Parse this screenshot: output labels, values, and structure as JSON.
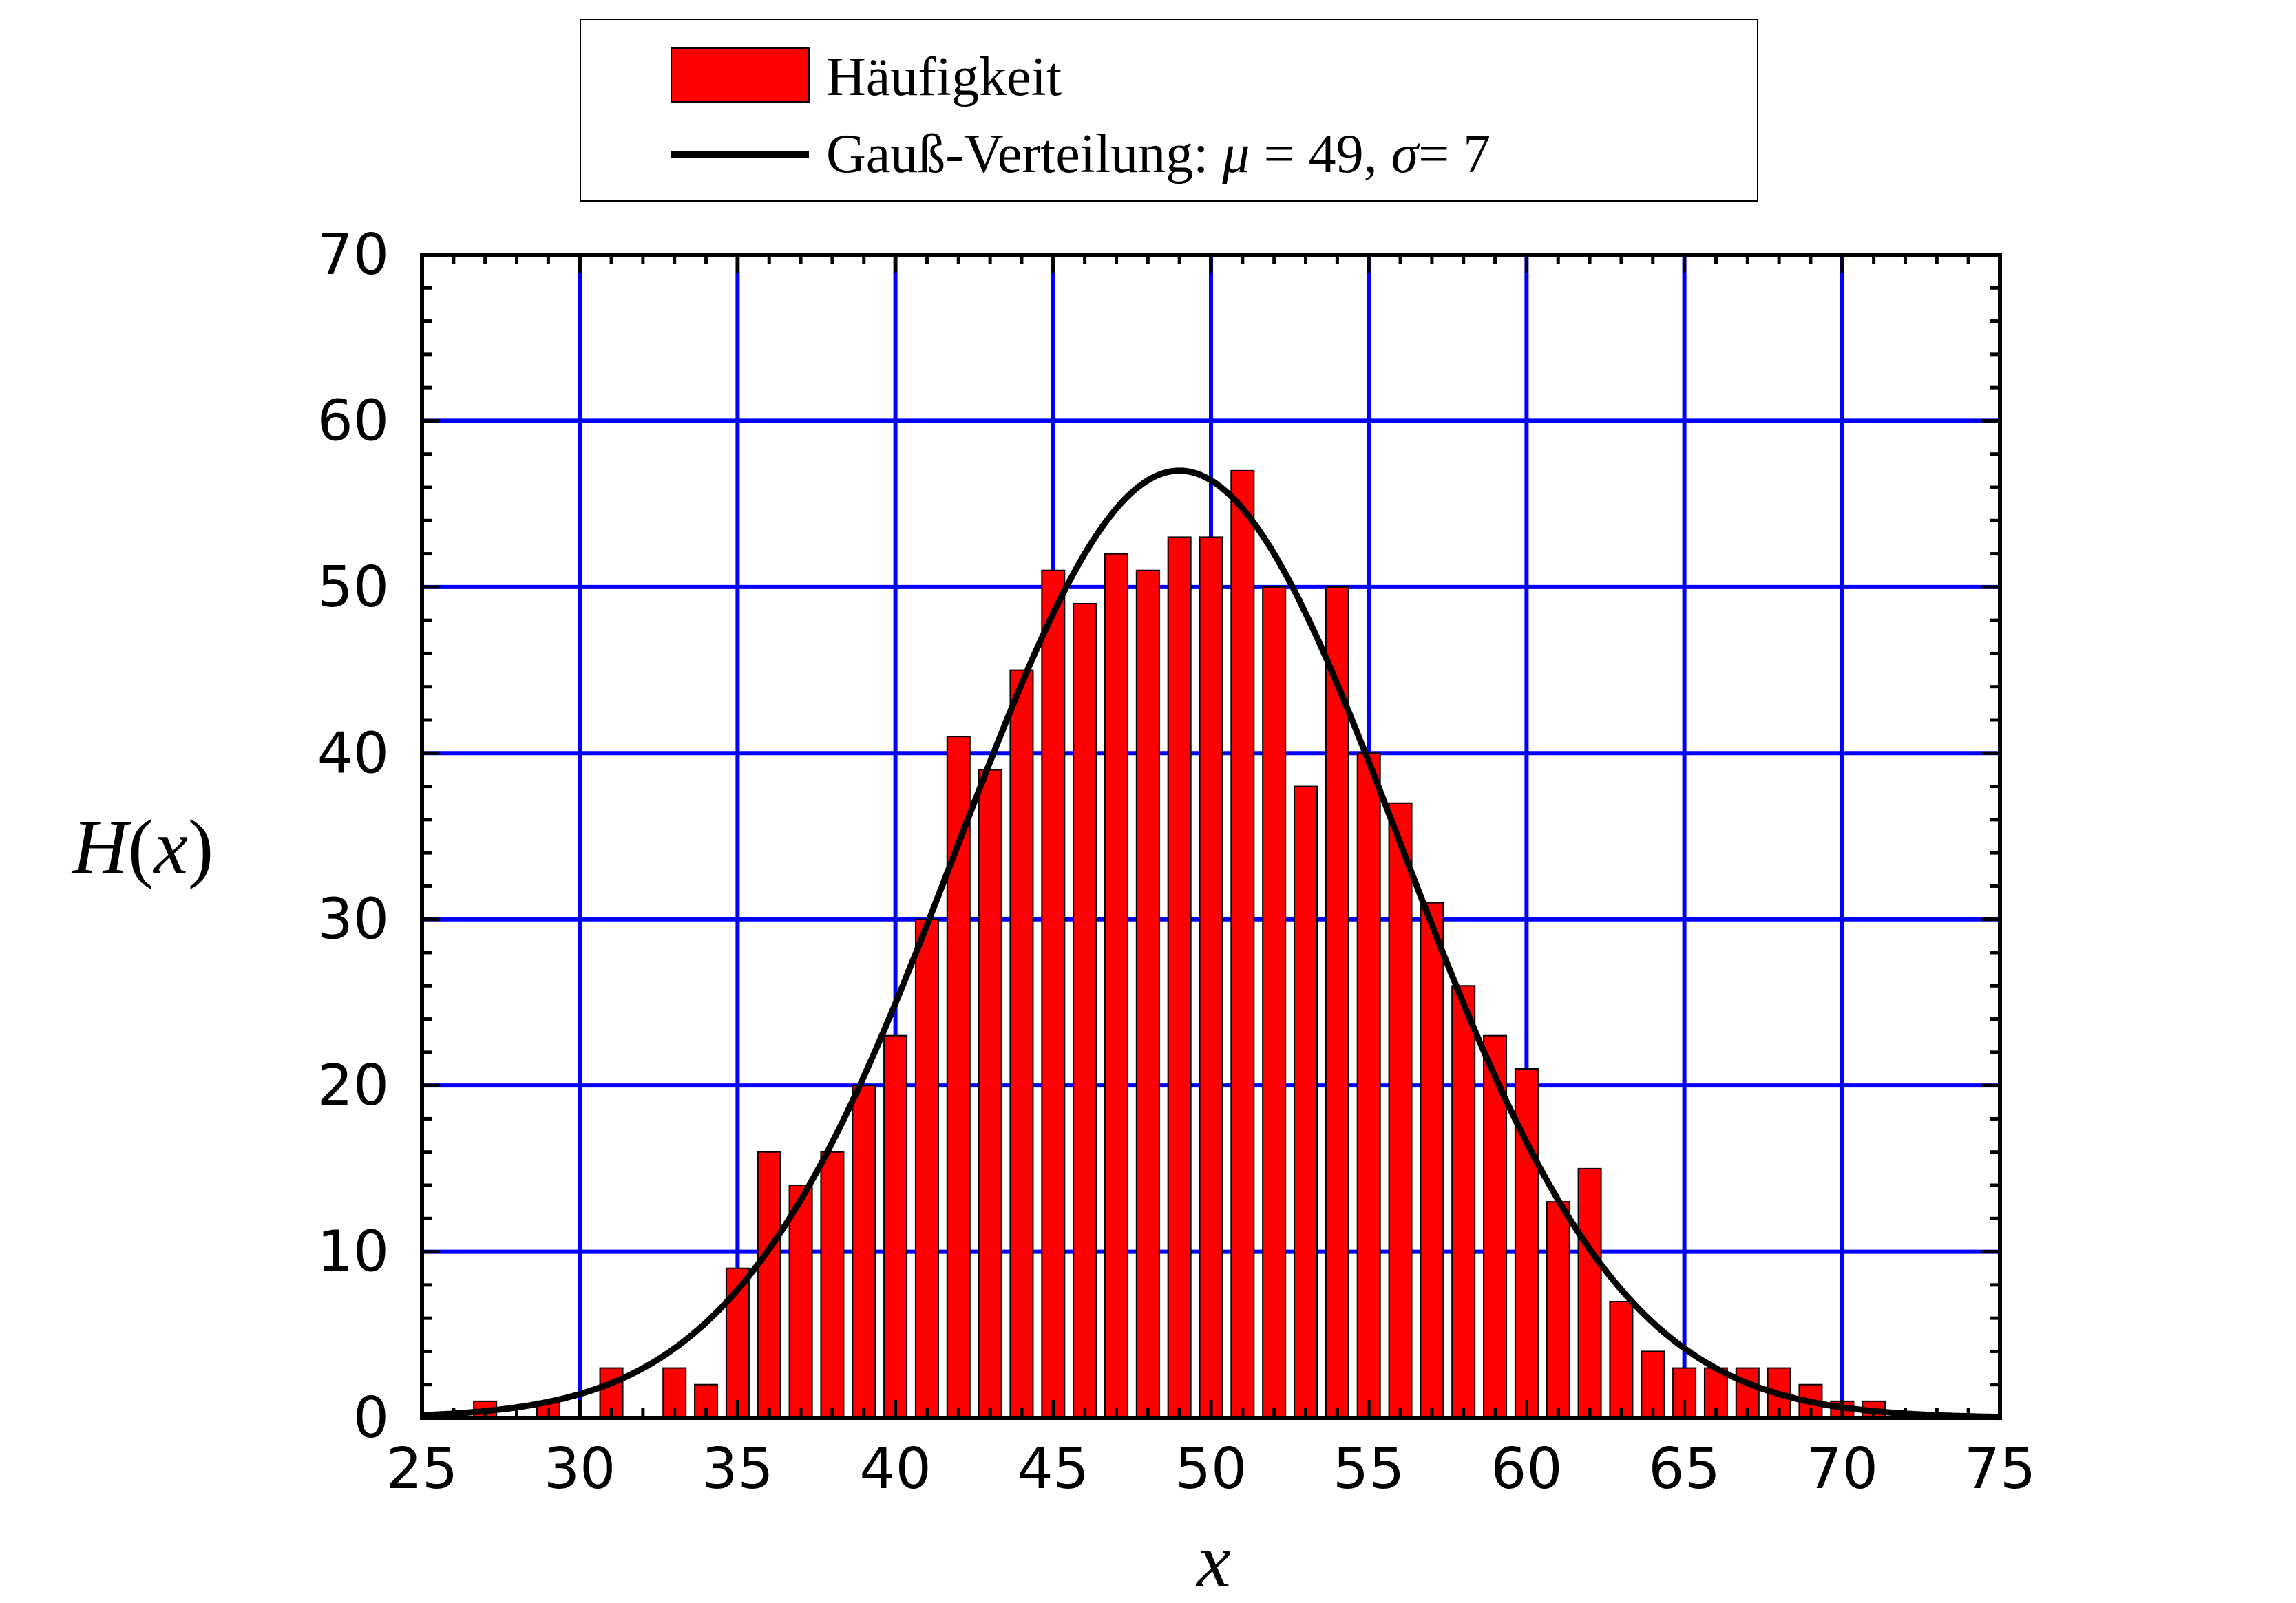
{
  "chart_data": {
    "type": "bar",
    "xlabel": "x",
    "ylabel": "H(x)",
    "xlim": [
      25,
      75
    ],
    "ylim": [
      0,
      70
    ],
    "xticks": [
      25,
      30,
      35,
      40,
      45,
      50,
      55,
      60,
      65,
      70,
      75
    ],
    "yticks": [
      0,
      10,
      20,
      30,
      40,
      50,
      60,
      70
    ],
    "grid": true,
    "legend_position": "top",
    "colors": {
      "bars": "#ff0000",
      "bar_edge": "#000000",
      "grid": "#0000ff",
      "curve": "#000000"
    },
    "series": [
      {
        "name": "Häufigkeit",
        "type": "bar",
        "x": [
          27,
          29,
          31,
          33,
          34,
          35,
          36,
          37,
          38,
          39,
          40,
          41,
          42,
          43,
          44,
          45,
          46,
          47,
          48,
          49,
          50,
          51,
          52,
          53,
          54,
          55,
          56,
          57,
          58,
          59,
          60,
          61,
          62,
          63,
          64,
          65,
          66,
          67,
          68,
          69,
          70,
          71
        ],
        "values": [
          1,
          1,
          3,
          3,
          2,
          9,
          16,
          14,
          16,
          20,
          23,
          30,
          41,
          39,
          45,
          51,
          49,
          52,
          51,
          53,
          53,
          57,
          50,
          38,
          50,
          40,
          37,
          31,
          26,
          23,
          21,
          13,
          15,
          7,
          4,
          3,
          3,
          3,
          3,
          2,
          1,
          1
        ]
      },
      {
        "name": "Gauß-Verteilung",
        "type": "line",
        "mu": 49,
        "sigma": 7,
        "peak": 57
      }
    ],
    "legend": {
      "bar_label": "Häufigkeit",
      "line_label_prefix": "Gauß-Verteilung: ",
      "mu_symbol": "μ",
      "mu_value": " = 49, ",
      "sigma_symbol": "σ",
      "sigma_value": "= 7"
    }
  }
}
